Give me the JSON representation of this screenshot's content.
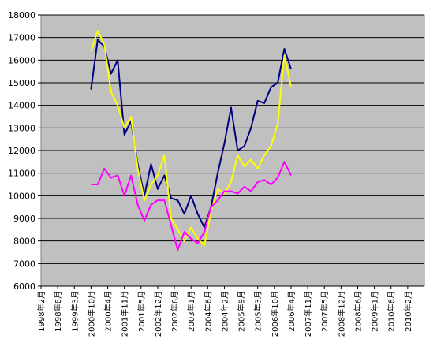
{
  "chart_data": {
    "type": "line",
    "title": "",
    "xlabel": "",
    "ylabel": "",
    "ylim": [
      6000,
      18000
    ],
    "y_ticks": [
      6000,
      7000,
      8000,
      9000,
      10000,
      11000,
      12000,
      13000,
      14000,
      15000,
      16000,
      17000,
      18000
    ],
    "x_tick_labels": [
      "1998年2月",
      "1998年8月",
      "1999年3月",
      "2000年10月",
      "2000年4月",
      "2001年11月",
      "2001年5月",
      "2002年12月",
      "2002年6月",
      "2003年1月",
      "2004年8月",
      "2004年2月",
      "2005年9月",
      "2005年3月",
      "2006年10月",
      "2006年4月",
      "2007年11月",
      "2007年5月",
      "2008年12月",
      "2008年6月",
      "2009年1月",
      "2010年8月",
      "2010年2月"
    ],
    "grid": true,
    "colors": {
      "plot_background": "#c0c0c0",
      "gridlines": "#000000",
      "navy_series": "#000080",
      "yellow_series": "#ffff00",
      "magenta_series": "#ff00ff"
    },
    "series": [
      {
        "color": "#000080",
        "x": [
          3.0,
          3.4,
          3.8,
          4.2,
          4.6,
          5.0,
          5.4,
          5.8,
          6.2,
          6.6,
          7.0,
          7.4,
          7.8,
          8.2,
          8.6,
          9.0,
          9.4,
          9.8,
          10.2,
          10.6,
          11.0,
          11.4,
          11.8,
          12.2,
          12.6,
          13.0,
          13.4,
          13.8,
          14.2,
          14.6,
          15.0
        ],
        "values": [
          14700,
          16900,
          16600,
          15400,
          16000,
          12700,
          13300,
          11400,
          10000,
          11400,
          10300,
          10900,
          9900,
          9800,
          9200,
          10000,
          9200,
          8600,
          9500,
          11000,
          12300,
          13900,
          12000,
          12200,
          13000,
          14200,
          14100,
          14800,
          15000,
          16500,
          15600
        ]
      },
      {
        "color": "#ffff00",
        "x": [
          3.0,
          3.4,
          3.8,
          4.2,
          4.6,
          5.0,
          5.4,
          5.8,
          6.2,
          6.6,
          7.0,
          7.4,
          7.8,
          8.2,
          8.6,
          9.0,
          9.4,
          9.8,
          10.2,
          10.6,
          11.0,
          11.4,
          11.8,
          12.2,
          12.6,
          13.0,
          13.4,
          13.8,
          14.2,
          14.6,
          15.0
        ],
        "values": [
          16400,
          17300,
          16700,
          14600,
          14000,
          13000,
          13500,
          11200,
          9800,
          10500,
          10900,
          11800,
          9000,
          8500,
          8000,
          8600,
          8100,
          7800,
          9300,
          10300,
          10100,
          10600,
          11800,
          11300,
          11600,
          11200,
          11800,
          12200,
          13200,
          16200,
          14800
        ]
      },
      {
        "color": "#ff00ff",
        "x": [
          3.0,
          3.4,
          3.8,
          4.2,
          4.6,
          5.0,
          5.4,
          5.8,
          6.2,
          6.6,
          7.0,
          7.4,
          7.8,
          8.2,
          8.6,
          9.0,
          9.4,
          9.8,
          10.2,
          10.6,
          11.0,
          11.4,
          11.8,
          12.2,
          12.6,
          13.0,
          13.4,
          13.8,
          14.2,
          14.6,
          15.0
        ],
        "values": [
          10500,
          10500,
          11200,
          10800,
          10900,
          10000,
          10900,
          9600,
          8900,
          9600,
          9800,
          9800,
          8700,
          7600,
          8400,
          8100,
          7900,
          8400,
          9500,
          9800,
          10200,
          10200,
          10100,
          10400,
          10200,
          10600,
          10700,
          10500,
          10800,
          11500,
          10900
        ]
      }
    ]
  }
}
